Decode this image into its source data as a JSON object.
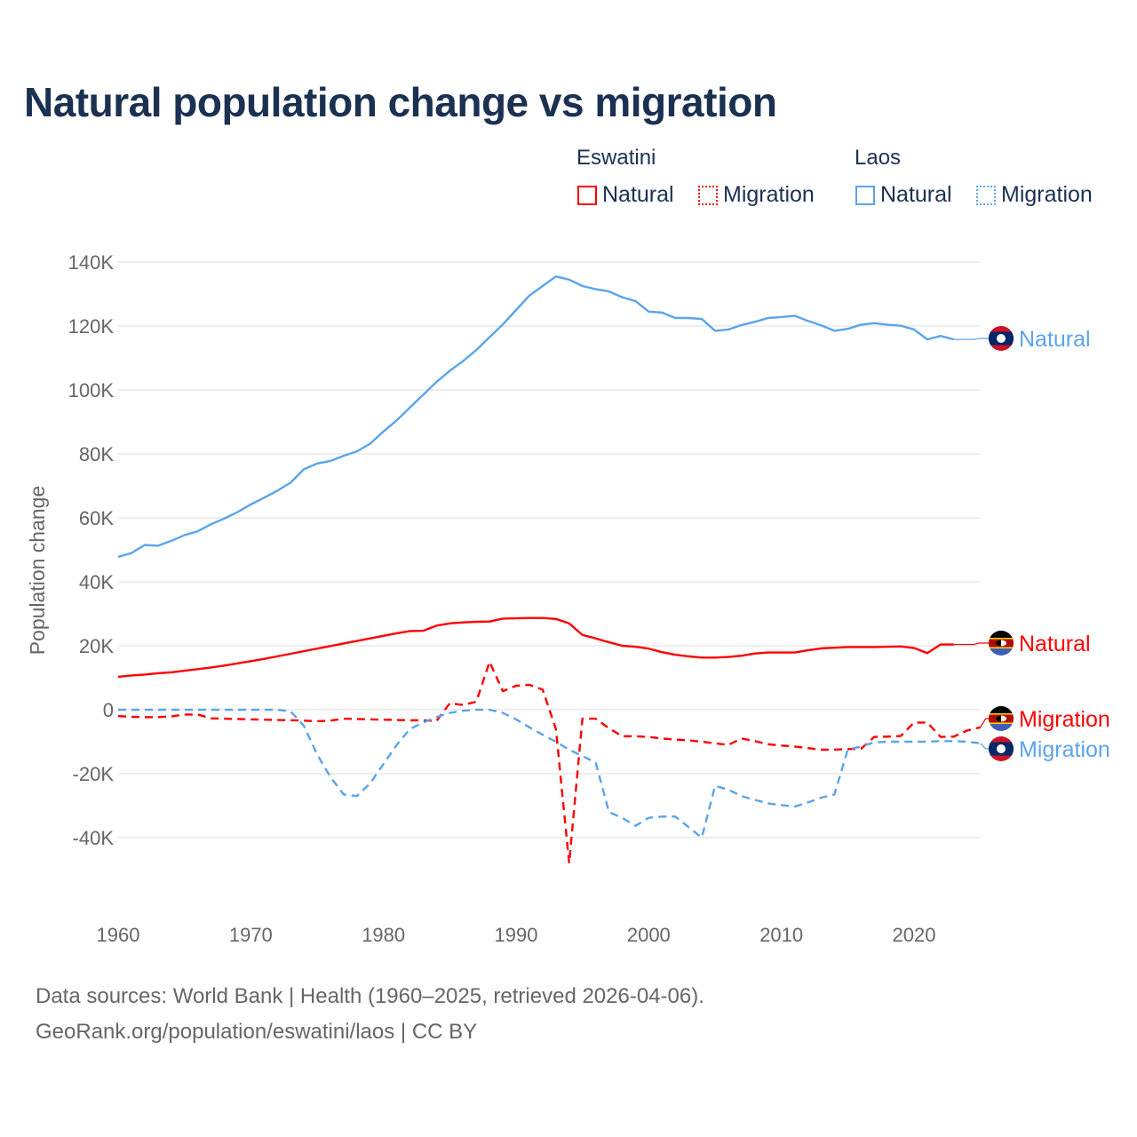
{
  "chart_data": {
    "type": "line",
    "title": "Natural population change vs migration",
    "ylabel": "Population change",
    "xlabel": "",
    "xlim": [
      1960,
      2025
    ],
    "ylim": [
      -50000,
      140000
    ],
    "x_ticks": [
      "1960",
      "1970",
      "1980",
      "1990",
      "2000",
      "2010",
      "2020"
    ],
    "y_ticks": [
      {
        "v": 140000,
        "label": "140K"
      },
      {
        "v": 120000,
        "label": "120K"
      },
      {
        "v": 100000,
        "label": "100K"
      },
      {
        "v": 80000,
        "label": "80K"
      },
      {
        "v": 60000,
        "label": "60K"
      },
      {
        "v": 40000,
        "label": "40K"
      },
      {
        "v": 20000,
        "label": "20K"
      },
      {
        "v": 0,
        "label": "0"
      },
      {
        "v": -20000,
        "label": "-20K"
      },
      {
        "v": -40000,
        "label": "-40K"
      }
    ],
    "grid": true,
    "legend": {
      "placement": "top-right",
      "groups": [
        {
          "label": "Eswatini",
          "items": [
            "Natural",
            "Migration"
          ]
        },
        {
          "label": "Laos",
          "items": [
            "Natural",
            "Migration"
          ]
        }
      ]
    },
    "series": [
      {
        "name": "Laos Natural",
        "country": "Laos",
        "kind": "Natural",
        "color": "#5ba4ea",
        "dash": false,
        "start_year": 1960,
        "values": [
          47800,
          49000,
          51500,
          51300,
          52800,
          54600,
          55800,
          58000,
          59800,
          61800,
          64200,
          66300,
          68500,
          71000,
          75200,
          77000,
          77800,
          79400,
          80800,
          83200,
          87000,
          90500,
          94500,
          98500,
          102500,
          106000,
          109000,
          112500,
          116500,
          120500,
          125000,
          129500,
          132500,
          135500,
          134500,
          132500,
          131500,
          130800,
          129000,
          127800,
          124500,
          124200,
          122500,
          122500,
          122200,
          118500,
          118900,
          120300,
          121300,
          122500,
          122800,
          123200,
          121600,
          120200,
          118500,
          119100,
          120400,
          120900,
          120400,
          120100,
          118900,
          115800,
          116900,
          115800
        ]
      },
      {
        "name": "Eswatini Natural",
        "country": "Eswatini",
        "kind": "Natural",
        "color": "#ff0000",
        "dash": false,
        "start_year": 1960,
        "values": [
          10300,
          10700,
          11000,
          11400,
          11700,
          12200,
          12700,
          13200,
          13800,
          14500,
          15200,
          15900,
          16700,
          17500,
          18300,
          19100,
          19900,
          20700,
          21500,
          22300,
          23100,
          23900,
          24600,
          24700,
          26300,
          27000,
          27300,
          27500,
          27600,
          28500,
          28600,
          28700,
          28700,
          28400,
          27000,
          23400,
          22300,
          21100,
          20000,
          19700,
          19100,
          18000,
          17200,
          16700,
          16300,
          16300,
          16500,
          16900,
          17600,
          17900,
          17900,
          17900,
          18600,
          19200,
          19400,
          19600,
          19600,
          19600,
          19700,
          19800,
          19300,
          17700,
          20400,
          20400
        ]
      },
      {
        "name": "Eswatini Migration",
        "country": "Eswatini",
        "kind": "Migration",
        "color": "#ff0000",
        "dash": true,
        "start_year": 1960,
        "values": [
          -2000,
          -2200,
          -2300,
          -2300,
          -2100,
          -1500,
          -1500,
          -2700,
          -2800,
          -2900,
          -3000,
          -3100,
          -3200,
          -3300,
          -3400,
          -3600,
          -3400,
          -2800,
          -2900,
          -3000,
          -3100,
          -3200,
          -3300,
          -3300,
          -3500,
          2000,
          1500,
          2500,
          15000,
          5800,
          7500,
          7800,
          6300,
          -6000,
          -48000,
          -2800,
          -2800,
          -5800,
          -8300,
          -8300,
          -8500,
          -9000,
          -9300,
          -9600,
          -10000,
          -10500,
          -11000,
          -9000,
          -9800,
          -10800,
          -11200,
          -11500,
          -12000,
          -12500,
          -12500,
          -12300,
          -12200,
          -8500,
          -8400,
          -8200,
          -4000,
          -4000,
          -8500,
          -8400,
          -6500,
          -5500
        ]
      },
      {
        "name": "Laos Migration",
        "country": "Laos",
        "kind": "Migration",
        "color": "#5ba4ea",
        "dash": true,
        "start_year": 1960,
        "values": [
          0,
          0,
          0,
          0,
          0,
          0,
          0,
          0,
          0,
          0,
          0,
          0,
          0,
          -500,
          -5000,
          -14000,
          -21000,
          -26500,
          -27000,
          -23000,
          -17000,
          -11000,
          -6000,
          -4000,
          -2300,
          -1000,
          -300,
          0,
          0,
          -1000,
          -3000,
          -5500,
          -7800,
          -10000,
          -12500,
          -14500,
          -16500,
          -32000,
          -33800,
          -36300,
          -33800,
          -33400,
          -33400,
          -36700,
          -40000,
          -23800,
          -25000,
          -27000,
          -28200,
          -29300,
          -29800,
          -30300,
          -29000,
          -27500,
          -26500,
          -12500,
          -11500,
          -10200,
          -10000,
          -10000,
          -10000,
          -10000,
          -9800,
          -9800,
          -10000,
          -10500
        ]
      }
    ],
    "end_labels": [
      {
        "text": "Natural",
        "country": "Laos"
      },
      {
        "text": "Natural",
        "country": "Eswatini"
      },
      {
        "text": "Migration",
        "country": "Eswatini"
      },
      {
        "text": "Migration",
        "country": "Laos"
      }
    ]
  },
  "colors": {
    "eswatini": "#ff0000",
    "laos": "#5ba4ea",
    "title": "#1b3152"
  },
  "footer": {
    "line1": "Data sources: World Bank | Health (1960–2025, retrieved 2026-04-06).",
    "line2": "GeoRank.org/population/eswatini/laos | CC BY"
  }
}
